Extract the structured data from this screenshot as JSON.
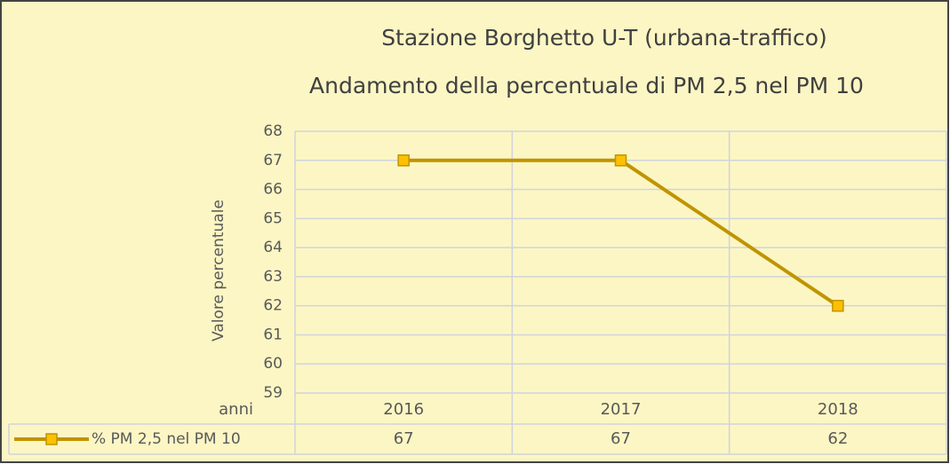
{
  "chart_data": {
    "type": "line",
    "title": [
      "Stazione Borghetto U-T (urbana-traffico)",
      "Andamento della percentuale di PM 2,5 nel PM 10"
    ],
    "x_label": "anni",
    "y_label": "Valore percentuale",
    "categories": [
      "2016",
      "2017",
      "2018"
    ],
    "series": [
      {
        "name": "% PM 2,5 nel PM 10",
        "color": "#c09400",
        "marker_color": "#ffc000",
        "values": [
          67,
          67,
          62
        ]
      }
    ],
    "ylim": [
      59,
      68
    ],
    "yticks": [
      59,
      60,
      61,
      62,
      63,
      64,
      65,
      66,
      67,
      68
    ],
    "grid": true,
    "data_table": true
  }
}
